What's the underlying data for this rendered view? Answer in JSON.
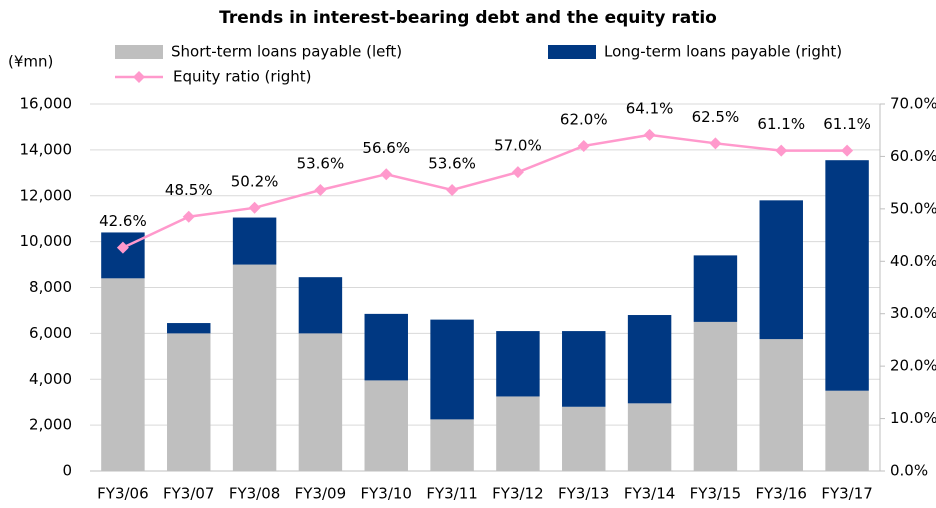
{
  "chart_data": {
    "type": "bar",
    "title": "Trends in interest-bearing debt and the equity ratio",
    "ylabel": "(¥mn)",
    "categories": [
      "FY3/06",
      "FY3/07",
      "FY3/08",
      "FY3/09",
      "FY3/10",
      "FY3/11",
      "FY3/12",
      "FY3/13",
      "FY3/14",
      "FY3/15",
      "FY3/16",
      "FY3/17"
    ],
    "series": [
      {
        "name": "Short-term loans payable (left)",
        "color": "#bfbfbf",
        "type": "bar",
        "values": [
          8400,
          6000,
          9000,
          6000,
          3950,
          2250,
          3250,
          2800,
          2950,
          6500,
          5750,
          3500
        ]
      },
      {
        "name": "Long-term loans payable (right)",
        "color": "#003882",
        "type": "bar",
        "values": [
          2000,
          450,
          2050,
          2450,
          2900,
          4350,
          2850,
          3300,
          3850,
          2900,
          6050,
          10050
        ]
      },
      {
        "name": "Equity ratio (right)",
        "color": "#ff99cc",
        "type": "line",
        "axis": "y2",
        "values": [
          42.6,
          48.5,
          50.2,
          53.6,
          56.6,
          53.6,
          57.0,
          62.0,
          64.1,
          62.5,
          61.1,
          61.1
        ],
        "value_labels": [
          "42.6%",
          "48.5%",
          "50.2%",
          "53.6%",
          "56.6%",
          "53.6%",
          "57.0%",
          "62.0%",
          "64.1%",
          "62.5%",
          "61.1%",
          "61.1%"
        ]
      }
    ],
    "stacked": true,
    "ylim": [
      0,
      16000
    ],
    "yticks": [
      0,
      {
        "value": 2000,
        "label": "2,000"
      },
      {
        "value": 4000,
        "label": "4,000"
      },
      {
        "value": 6000,
        "label": "6,000"
      },
      {
        "value": 8000,
        "label": "8,000"
      },
      {
        "value": 10000,
        "label": "10,000"
      },
      {
        "value": 12000,
        "label": "12,000"
      },
      {
        "value": 14000,
        "label": "14,000"
      },
      {
        "value": 16000,
        "label": "16,000"
      }
    ],
    "y2lim": [
      0,
      70
    ],
    "y2ticks": [
      {
        "value": 0,
        "label": "0.0%"
      },
      {
        "value": 10,
        "label": "10.0%"
      },
      {
        "value": 20,
        "label": "20.0%"
      },
      {
        "value": 30,
        "label": "30.0%"
      },
      {
        "value": 40,
        "label": "40.0%"
      },
      {
        "value": 50,
        "label": "50.0%"
      },
      {
        "value": 60,
        "label": "60.0%"
      },
      {
        "value": 70,
        "label": "70.0%"
      }
    ],
    "grid": true
  }
}
